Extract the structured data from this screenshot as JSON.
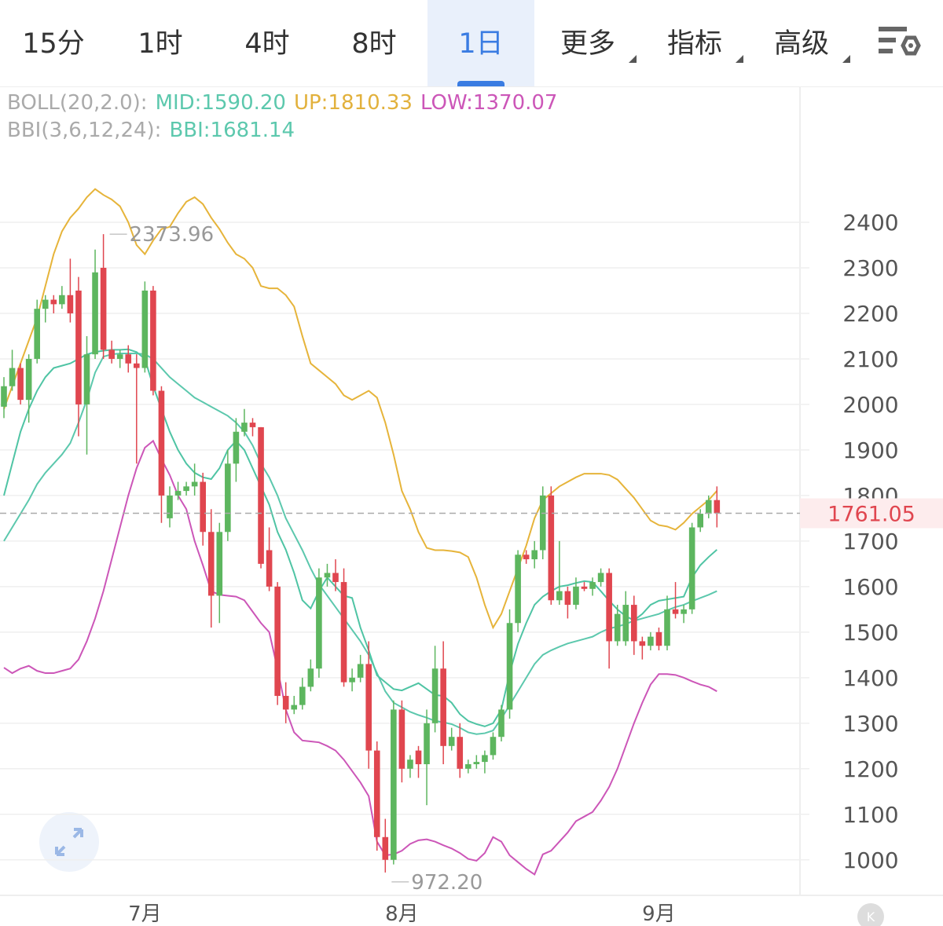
{
  "tabs": [
    {
      "label": "15分"
    },
    {
      "label": "1时"
    },
    {
      "label": "4时"
    },
    {
      "label": "8时"
    },
    {
      "label": "1日",
      "active": true
    },
    {
      "label": "更多",
      "dropdown": true
    },
    {
      "label": "指标",
      "dropdown": true
    },
    {
      "label": "高级",
      "dropdown": true
    }
  ],
  "chart_data": {
    "type": "candlestick",
    "indicators": [
      {
        "label": "BOLL(20,2.0):",
        "items": [
          {
            "text": "MID:1590.20",
            "color": "#5cc8ad"
          },
          {
            "text": "UP:1810.33",
            "color": "#e2b13c"
          },
          {
            "text": "LOW:1370.07",
            "color": "#cc56b8"
          }
        ]
      },
      {
        "label": "BBI(3,6,12,24):",
        "items": [
          {
            "text": "BBI:1681.14",
            "color": "#5cc8ad"
          }
        ]
      }
    ],
    "categories": [
      null,
      null,
      null,
      null,
      null,
      null,
      null,
      null,
      null,
      null,
      null,
      null,
      null,
      null,
      null,
      null,
      null,
      "7月",
      null,
      null,
      null,
      null,
      null,
      null,
      null,
      null,
      null,
      null,
      null,
      null,
      null,
      null,
      null,
      null,
      null,
      null,
      null,
      null,
      null,
      null,
      null,
      null,
      null,
      null,
      null,
      null,
      null,
      null,
      "8月",
      null,
      null,
      null,
      null,
      null,
      null,
      null,
      null,
      null,
      null,
      null,
      null,
      null,
      null,
      null,
      null,
      null,
      null,
      null,
      null,
      null,
      null,
      null,
      null,
      null,
      null,
      null,
      null,
      null,
      null,
      "9月",
      null,
      null,
      null,
      null,
      null,
      null,
      null
    ],
    "open": [
      1995,
      2040,
      2080,
      2010,
      2100,
      2210,
      2230,
      2220,
      2240,
      2250,
      2000,
      2110,
      2300,
      2120,
      2100,
      2110,
      2090,
      2080,
      2250,
      2030,
      1750,
      1800,
      1810,
      1820,
      1830,
      1720,
      1580,
      1720,
      1870,
      1940,
      1960,
      1950,
      1680,
      1600,
      1360,
      1330,
      1340,
      1380,
      1420,
      1620,
      1630,
      1610,
      1390,
      1400,
      1430,
      1240,
      1050,
      1000,
      1330,
      1200,
      1240,
      1210,
      1300,
      1420,
      1250,
      1270,
      1200,
      1210,
      1215,
      1230,
      1270,
      1330,
      1520,
      1670,
      1660,
      1680,
      1800,
      1570,
      1590,
      1560,
      1600,
      1595,
      1610,
      1630,
      1480,
      1480,
      1560,
      1480,
      1470,
      1500,
      1470,
      1550,
      1540,
      1550,
      1730,
      1760,
      1790
    ],
    "high": [
      2060,
      2120,
      2090,
      2110,
      2230,
      2240,
      2240,
      2260,
      2320,
      2280,
      2150,
      2340,
      2373.96,
      2140,
      2120,
      2130,
      2110,
      2270,
      2260,
      2040,
      1820,
      1830,
      1830,
      1870,
      1850,
      1770,
      1740,
      1900,
      1970,
      1990,
      1970,
      1950,
      1730,
      1610,
      1390,
      1360,
      1400,
      1440,
      1640,
      1650,
      1660,
      1640,
      1420,
      1450,
      1480,
      1260,
      1090,
      1350,
      1350,
      1230,
      1250,
      1330,
      1470,
      1480,
      1290,
      1300,
      1220,
      1230,
      1240,
      1280,
      1340,
      1550,
      1680,
      1680,
      1700,
      1820,
      1820,
      1700,
      1600,
      1620,
      1610,
      1620,
      1640,
      1640,
      1560,
      1590,
      1580,
      1490,
      1500,
      1510,
      1580,
      1610,
      1560,
      1740,
      1770,
      1800,
      1820
    ],
    "low": [
      1970,
      2030,
      2000,
      1960,
      2090,
      2180,
      2200,
      2210,
      2180,
      1930,
      1890,
      2100,
      2100,
      2090,
      2080,
      2070,
      1870,
      2070,
      2020,
      1740,
      1730,
      1790,
      1800,
      1800,
      1690,
      1510,
      1520,
      1700,
      1830,
      1930,
      1930,
      1640,
      1590,
      1340,
      1300,
      1320,
      1330,
      1370,
      1400,
      1600,
      1590,
      1380,
      1370,
      1390,
      1200,
      1020,
      972.2,
      990,
      1170,
      1180,
      1180,
      1120,
      1280,
      1210,
      1240,
      1180,
      1190,
      1200,
      1190,
      1220,
      1260,
      1310,
      1500,
      1650,
      1640,
      1660,
      1560,
      1560,
      1530,
      1550,
      1590,
      1580,
      1600,
      1420,
      1470,
      1470,
      1450,
      1440,
      1460,
      1460,
      1460,
      1530,
      1520,
      1540,
      1720,
      1750,
      1730
    ],
    "close": [
      2040,
      2080,
      2010,
      2100,
      2210,
      2230,
      2220,
      2240,
      2200,
      2000,
      2110,
      2290,
      2120,
      2100,
      2110,
      2090,
      2080,
      2250,
      2030,
      1800,
      1800,
      1810,
      1820,
      1830,
      1720,
      1580,
      1720,
      1870,
      1940,
      1960,
      1950,
      1650,
      1600,
      1360,
      1330,
      1340,
      1380,
      1420,
      1620,
      1630,
      1610,
      1390,
      1400,
      1430,
      1240,
      1050,
      1000,
      1330,
      1200,
      1220,
      1210,
      1300,
      1420,
      1250,
      1270,
      1200,
      1210,
      1215,
      1230,
      1270,
      1330,
      1520,
      1670,
      1660,
      1680,
      1800,
      1570,
      1590,
      1560,
      1600,
      1595,
      1610,
      1630,
      1480,
      1540,
      1560,
      1480,
      1470,
      1490,
      1470,
      1550,
      1540,
      1550,
      1730,
      1760,
      1790,
      1761.05
    ],
    "up_color": "#5db65f",
    "down_color": "#e0464f",
    "overlays": [
      {
        "color": "#e6b43a",
        "values": [
          1990,
          2040,
          2090,
          2140,
          2190,
          2260,
          2330,
          2380,
          2410,
          2430,
          2455,
          2473,
          2460,
          2450,
          2435,
          2400,
          2350,
          2330,
          2360,
          2385,
          2390,
          2420,
          2445,
          2455,
          2440,
          2410,
          2385,
          2355,
          2330,
          2320,
          2300,
          2260,
          2255,
          2255,
          2240,
          2215,
          2150,
          2090,
          2075,
          2060,
          2045,
          2020,
          2010,
          2020,
          2030,
          2015,
          1960,
          1890,
          1810,
          1770,
          1720,
          1685,
          1680,
          1680,
          1678,
          1675,
          1665,
          1620,
          1560,
          1510,
          1540,
          1590,
          1640,
          1690,
          1750,
          1790,
          1805,
          1820,
          1830,
          1840,
          1848,
          1848,
          1848,
          1845,
          1835,
          1815,
          1795,
          1770,
          1745,
          1735,
          1732,
          1725,
          1740,
          1760,
          1775,
          1790,
          1810.33
        ]
      },
      {
        "color": "#5cc8ad",
        "values": [
          1700,
          1730,
          1760,
          1790,
          1825,
          1850,
          1870,
          1890,
          1915,
          1960,
          2010,
          2070,
          2105,
          2110,
          2112,
          2112,
          2112,
          2110,
          2100,
          2080,
          2060,
          2045,
          2030,
          2015,
          2005,
          1995,
          1985,
          1975,
          1960,
          1940,
          1910,
          1870,
          1840,
          1800,
          1750,
          1715,
          1680,
          1640,
          1605,
          1580,
          1555,
          1530,
          1505,
          1480,
          1450,
          1410,
          1370,
          1345,
          1335,
          1325,
          1318,
          1312,
          1305,
          1302,
          1298,
          1290,
          1280,
          1276,
          1278,
          1284,
          1310,
          1340,
          1370,
          1400,
          1430,
          1450,
          1460,
          1468,
          1475,
          1480,
          1485,
          1490,
          1500,
          1508,
          1512,
          1518,
          1525,
          1530,
          1535,
          1540,
          1548,
          1555,
          1560,
          1568,
          1575,
          1582,
          1590.2
        ]
      },
      {
        "color": "#cc56b8",
        "values": [
          1422,
          1410,
          1420,
          1426,
          1415,
          1410,
          1410,
          1415,
          1420,
          1440,
          1480,
          1530,
          1590,
          1660,
          1730,
          1800,
          1860,
          1905,
          1920,
          1880,
          1845,
          1800,
          1770,
          1700,
          1647,
          1590,
          1582,
          1580,
          1578,
          1570,
          1545,
          1520,
          1500,
          1420,
          1330,
          1280,
          1262,
          1260,
          1258,
          1250,
          1240,
          1220,
          1195,
          1170,
          1140,
          1040,
          1010,
          1012,
          1020,
          1035,
          1043,
          1045,
          1040,
          1032,
          1025,
          1015,
          1002,
          998,
          1015,
          1050,
          1040,
          1010,
          995,
          980,
          968,
          1012,
          1020,
          1040,
          1060,
          1085,
          1095,
          1105,
          1130,
          1160,
          1200,
          1250,
          1300,
          1345,
          1385,
          1408,
          1408,
          1406,
          1400,
          1392,
          1385,
          1380,
          1370.07
        ]
      },
      {
        "color": "#4fc4a4",
        "values": [
          1800,
          1870,
          1940,
          1990,
          2030,
          2060,
          2080,
          2085,
          2090,
          2100,
          2110,
          2115,
          2118,
          2120,
          2120,
          2121,
          2115,
          2100,
          2040,
          1990,
          1940,
          1900,
          1870,
          1850,
          1840,
          1836,
          1860,
          1900,
          1920,
          1900,
          1860,
          1820,
          1780,
          1720,
          1681,
          1630,
          1570,
          1552,
          1590,
          1620,
          1600,
          1580,
          1575,
          1510,
          1460,
          1405,
          1390,
          1375,
          1372,
          1380,
          1388,
          1375,
          1362,
          1360,
          1345,
          1320,
          1305,
          1298,
          1293,
          1300,
          1330,
          1410,
          1474,
          1520,
          1560,
          1578,
          1590,
          1600,
          1603,
          1608,
          1612,
          1610,
          1590,
          1569,
          1550,
          1535,
          1526,
          1540,
          1560,
          1569,
          1572,
          1575,
          1578,
          1620,
          1647,
          1665,
          1681.14
        ]
      }
    ],
    "ylim": [
      922,
      2569
    ],
    "yticks": [
      1000,
      1100,
      1200,
      1300,
      1400,
      1500,
      1600,
      1700,
      1800,
      1900,
      2000,
      2100,
      2200,
      2300,
      2400
    ],
    "grid": true,
    "max_high": 2373.96,
    "min_low": {
      "value": 972.2,
      "label": "972.20"
    },
    "last_price": 1761.05
  }
}
